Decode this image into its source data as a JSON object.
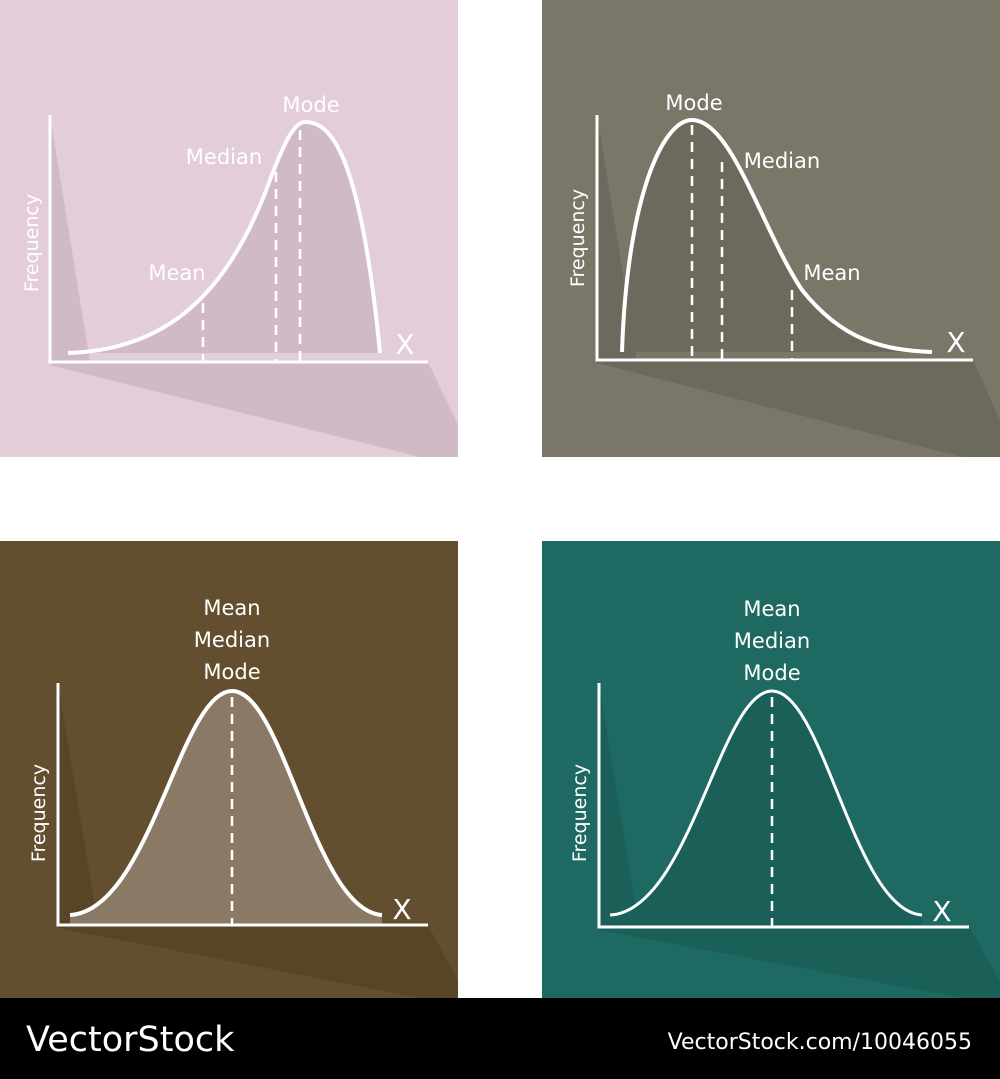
{
  "panels": [
    {
      "y_label": "Frequency",
      "x_label": "X",
      "labels": [
        "Mode",
        "Median",
        "Mean"
      ]
    },
    {
      "y_label": "Frequency",
      "x_label": "X",
      "labels": [
        "Mode",
        "Median",
        "Mean"
      ]
    },
    {
      "y_label": "Frequency",
      "x_label": "X",
      "labels": [
        "Mean",
        "Median",
        "Mode"
      ]
    },
    {
      "y_label": "Frequency",
      "x_label": "X",
      "labels": [
        "Mean",
        "Median",
        "Mode"
      ]
    }
  ],
  "footer": {
    "brand": "VectorStock",
    "id": "VectorStock.com/10046055"
  }
}
